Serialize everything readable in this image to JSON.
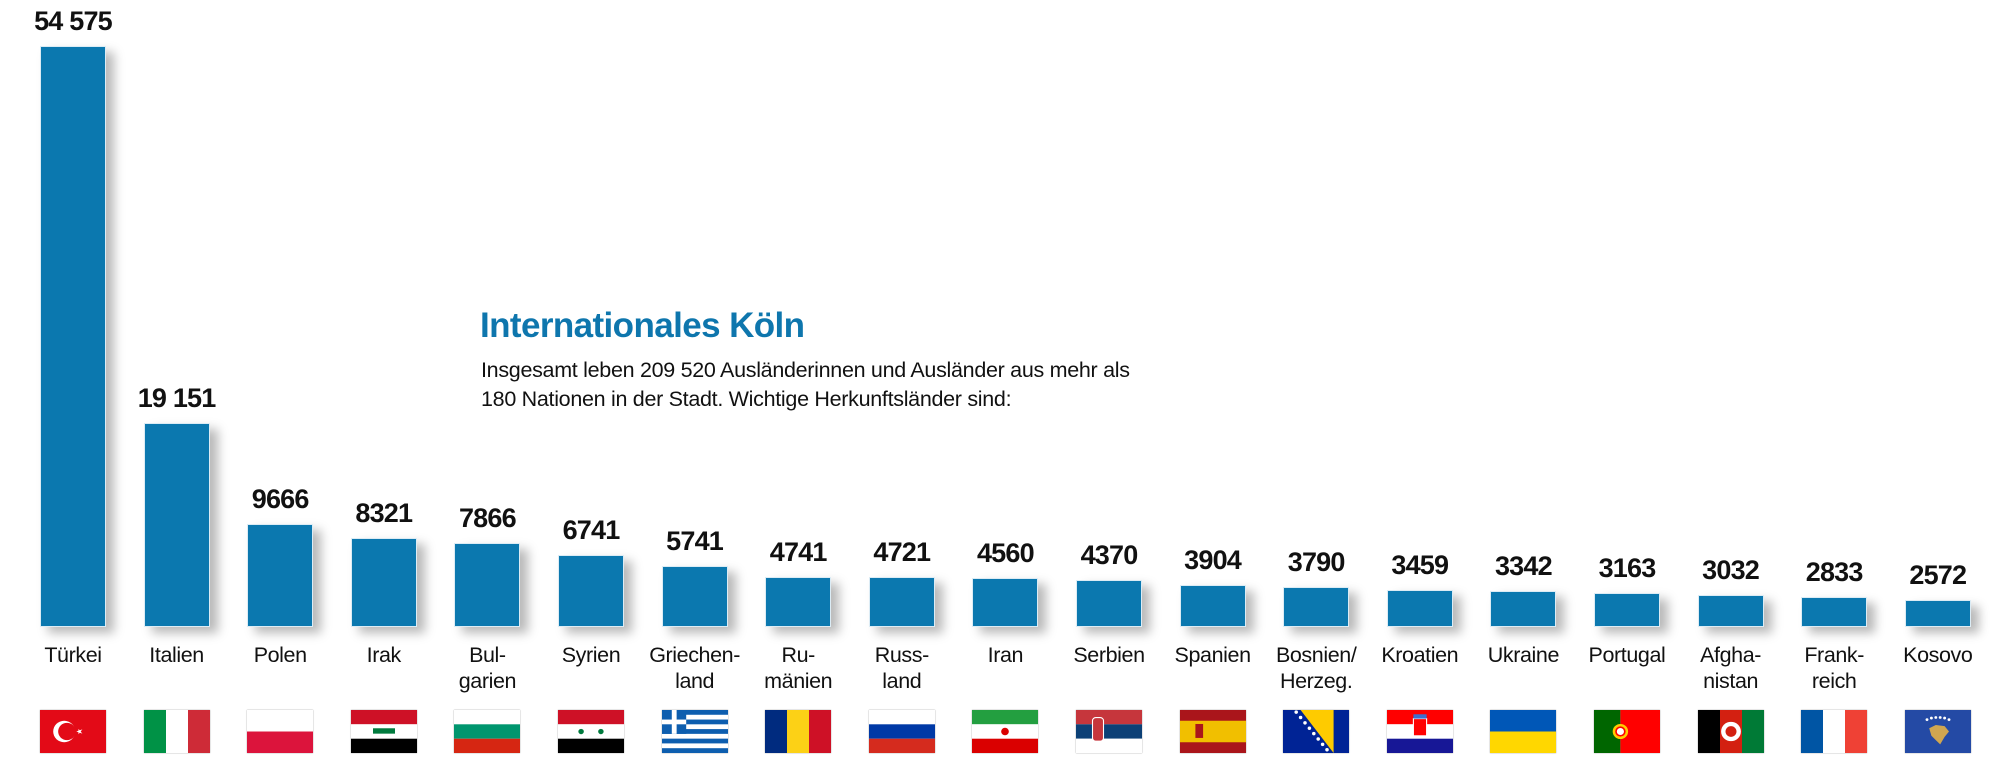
{
  "header": {
    "title": "Internationales Köln",
    "subtitle_line1": "Insgesamt leben 209 520 Ausländerinnen und Ausländer aus mehr als",
    "subtitle_line2": "180 Nationen in der Stadt. Wichtige Herkunftsländer sind:"
  },
  "colors": {
    "bar": "#0b78af",
    "title": "#0e76ad"
  },
  "chart_data": {
    "type": "bar",
    "title": "Internationales Köln",
    "subtitle": "Insgesamt leben 209 520 Ausländerinnen und Ausländer aus mehr als 180 Nationen in der Stadt. Wichtige Herkunftsländer sind:",
    "xlabel": "",
    "ylabel": "",
    "ylim": [
      0,
      54575
    ],
    "grid": false,
    "legend": "none",
    "categories": [
      "Türkei",
      "Italien",
      "Polen",
      "Irak",
      "Bulgarien",
      "Syrien",
      "Griechenland",
      "Rumänien",
      "Russland",
      "Iran",
      "Serbien",
      "Spanien",
      "Bosnien/Herzeg.",
      "Kroatien",
      "Ukraine",
      "Portugal",
      "Afghanistan",
      "Frankreich",
      "Kosovo"
    ],
    "category_labels": [
      "Türkei",
      "Italien",
      "Polen",
      "Irak",
      "Bul-\ngarien",
      "Syrien",
      "Griechen-\nland",
      "Ru-\nmänien",
      "Russ-\nland",
      "Iran",
      "Serbien",
      "Spanien",
      "Bosnien/\nHerzeg.",
      "Kroatien",
      "Ukraine",
      "Portugal",
      "Afgha-\nnistan",
      "Frank-\nreich",
      "Kosovo"
    ],
    "values": [
      54575,
      19151,
      9666,
      8321,
      7866,
      6741,
      5741,
      4741,
      4721,
      4560,
      4370,
      3904,
      3790,
      3459,
      3342,
      3163,
      3032,
      2833,
      2572
    ],
    "value_labels": [
      "54 575",
      "19 151",
      "9666",
      "8321",
      "7866",
      "6741",
      "5741",
      "4741",
      "4721",
      "4560",
      "4370",
      "3904",
      "3790",
      "3459",
      "3342",
      "3163",
      "3032",
      "2833",
      "2572"
    ],
    "flags": [
      "turkey-flag",
      "italy-flag",
      "poland-flag",
      "iraq-flag",
      "bulgaria-flag",
      "syria-flag",
      "greece-flag",
      "romania-flag",
      "russia-flag",
      "iran-flag",
      "serbia-flag",
      "spain-flag",
      "bosnia-flag",
      "croatia-flag",
      "ukraine-flag",
      "portugal-flag",
      "afghanistan-flag",
      "france-flag",
      "kosovo-flag"
    ]
  }
}
